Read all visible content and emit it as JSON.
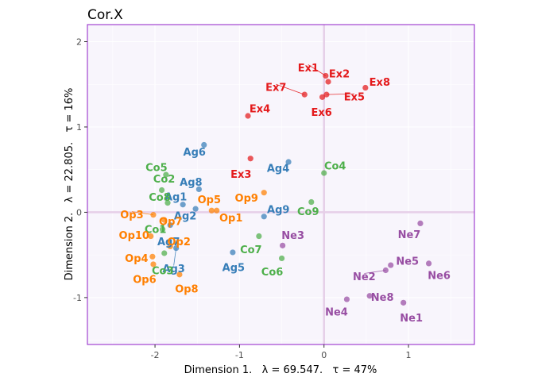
{
  "chart_data": {
    "type": "scatter",
    "title": "Cor.X",
    "xlabel": "Dimension 1.   λ = 69.547.   τ = 47%",
    "ylabel": "Dimension 2.   λ = 22.805.   τ = 16%",
    "xlim": [
      -2.8,
      1.78
    ],
    "ylim": [
      -1.55,
      2.2
    ],
    "xticks": [
      -2,
      -1,
      0,
      1
    ],
    "yticks": [
      -1,
      0,
      1,
      2
    ],
    "grid": true,
    "legend": "none",
    "colors": {
      "Ex": "#e41a1c",
      "Ag": "#377eb8",
      "Co": "#4daf4a",
      "Ne": "#984ea3",
      "Op": "#ff7f00",
      "frame": "#9932cc",
      "panel": "#f8f5fc",
      "zero_line": "#e6cfe8"
    },
    "series": [
      {
        "group": "Ex",
        "points": [
          {
            "label": "Ex1",
            "x": 0.02,
            "y": 1.6
          },
          {
            "label": "Ex2",
            "x": 0.05,
            "y": 1.53
          },
          {
            "label": "Ex7",
            "x": -0.23,
            "y": 1.38
          },
          {
            "label": "Ex5",
            "x": 0.03,
            "y": 1.38
          },
          {
            "label": "Ex8",
            "x": 0.49,
            "y": 1.46
          },
          {
            "label": "Ex6",
            "x": -0.02,
            "y": 1.35
          },
          {
            "label": "Ex4",
            "x": -0.9,
            "y": 1.13
          },
          {
            "label": "Ex3",
            "x": -0.87,
            "y": 0.63
          }
        ]
      },
      {
        "group": "Ag",
        "points": [
          {
            "label": "Ag6",
            "x": -1.42,
            "y": 0.79
          },
          {
            "label": "Ag4",
            "x": -0.42,
            "y": 0.59
          },
          {
            "label": "Ag8",
            "x": -1.48,
            "y": 0.27
          },
          {
            "label": "Ag1",
            "x": -1.67,
            "y": 0.09
          },
          {
            "label": "Ag2",
            "x": -1.52,
            "y": 0.04
          },
          {
            "label": "Ag9",
            "x": -0.71,
            "y": -0.05
          },
          {
            "label": "Ag7",
            "x": -1.82,
            "y": -0.15
          },
          {
            "label": "Ag3",
            "x": -1.75,
            "y": -0.42
          },
          {
            "label": "Ag5",
            "x": -1.08,
            "y": -0.47
          }
        ]
      },
      {
        "group": "Co",
        "points": [
          {
            "label": "Co5",
            "x": -1.87,
            "y": 0.44
          },
          {
            "label": "Co4",
            "x": 0.0,
            "y": 0.46
          },
          {
            "label": "Co2",
            "x": -1.92,
            "y": 0.26
          },
          {
            "label": "Co8",
            "x": -1.85,
            "y": 0.11
          },
          {
            "label": "Co9",
            "x": -0.15,
            "y": 0.12
          },
          {
            "label": "Co1",
            "x": -1.91,
            "y": -0.2
          },
          {
            "label": "Co7",
            "x": -0.77,
            "y": -0.28
          },
          {
            "label": "Co3",
            "x": -1.89,
            "y": -0.48
          },
          {
            "label": "Co6",
            "x": -0.5,
            "y": -0.54
          }
        ]
      },
      {
        "group": "Ne",
        "points": [
          {
            "label": "Ne3",
            "x": -0.49,
            "y": -0.39
          },
          {
            "label": "Ne7",
            "x": 1.14,
            "y": -0.13
          },
          {
            "label": "Ne5",
            "x": 0.79,
            "y": -0.62
          },
          {
            "label": "Ne6",
            "x": 1.24,
            "y": -0.6
          },
          {
            "label": "Ne2",
            "x": 0.73,
            "y": -0.68
          },
          {
            "label": "Ne8",
            "x": 0.54,
            "y": -0.98
          },
          {
            "label": "Ne4",
            "x": 0.27,
            "y": -1.02
          },
          {
            "label": "Ne1",
            "x": 0.94,
            "y": -1.06
          }
        ]
      },
      {
        "group": "Op",
        "points": [
          {
            "label": "Op9",
            "x": -0.71,
            "y": 0.23
          },
          {
            "label": "Op5",
            "x": -1.33,
            "y": 0.02
          },
          {
            "label": "Op3",
            "x": -2.02,
            "y": -0.03
          },
          {
            "label": "Op7",
            "x": -1.89,
            "y": -0.09
          },
          {
            "label": "Op1",
            "x": -1.27,
            "y": 0.02
          },
          {
            "label": "Op10",
            "x": -2.05,
            "y": -0.28
          },
          {
            "label": "Op2",
            "x": -1.82,
            "y": -0.4
          },
          {
            "label": "Op4",
            "x": -2.03,
            "y": -0.52
          },
          {
            "label": "Op6",
            "x": -2.02,
            "y": -0.61
          },
          {
            "label": "Op8",
            "x": -1.71,
            "y": -0.73
          }
        ]
      }
    ]
  }
}
